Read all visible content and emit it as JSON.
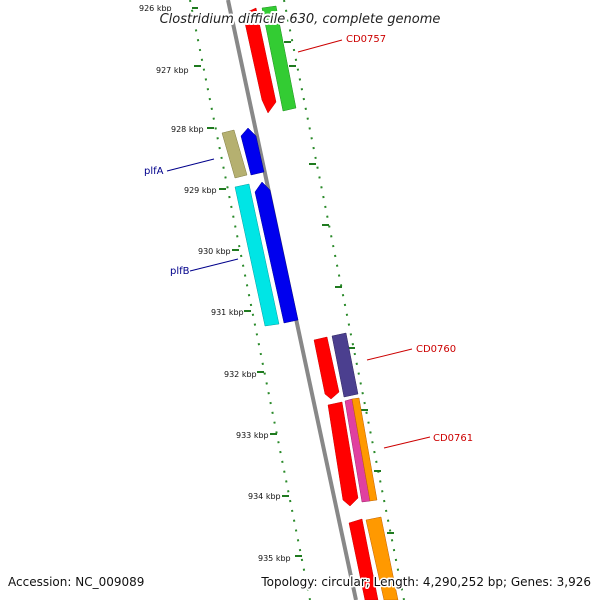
{
  "header": {
    "title": "Clostridium difficile 630, complete genome"
  },
  "footer": {
    "accession": "Accession: NC_009089",
    "summary": "Topology: circular; Length: 4,290,252 bp; Genes: 3,926"
  },
  "ticks": [
    "926 kbp",
    "927 kbp",
    "928 kbp",
    "929 kbp",
    "930 kbp",
    "931 kbp",
    "932 kbp",
    "933 kbp",
    "934 kbp",
    "935 kbp"
  ],
  "gene_labels": {
    "cd0757": "CD0757",
    "plfa": "plfA",
    "plfb": "plfB",
    "cd0760": "CD0760",
    "cd0761": "CD0761"
  },
  "colors": {
    "backbone": "#888888",
    "tick": "#1f7a1f",
    "red": "#ff0000",
    "green": "#33cc33",
    "olive": "#b5b070",
    "blue": "#0000ee",
    "cyan": "#00e5e5",
    "slate": "#4b3f8f",
    "magenta": "#e040a0",
    "orange": "#ff9900",
    "label_blue": "#00008b",
    "label_red": "#cc0000"
  }
}
